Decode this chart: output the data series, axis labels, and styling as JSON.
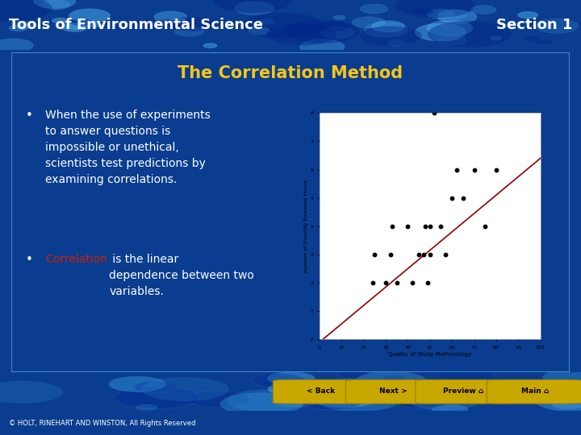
{
  "title_text": "Tools of Environmental Science",
  "section_text": "Section 1",
  "slide_title": "The Correlation Method",
  "bullet1": "When the use of experiments\nto answer questions is\nimpossible or unethical,\nscientists test predictions by\nexamining correlations.",
  "bullet2_red": "Correlation",
  "bullet2_rest": " is the linear\ndependence between two\nvariables.",
  "outer_bg": "#0a3d8f",
  "bubble_bg_top": "#1a7fd4",
  "bubble_bg_bottom": "#0055b3",
  "slide_bg": "#2a6abf",
  "slide_border": "#4488cc",
  "title_color": "#f5c518",
  "header_text_color": "#ffffff",
  "body_text_color": "#ffffff",
  "red_text_color": "#cc2200",
  "footer_text": "© HOLT, RINEHART AND WINSTON, All Rights Reserved",
  "footer_bg": "#000000",
  "btn_color": "#c8a800",
  "btn_text_color": "#000000",
  "scatter_x": [
    24,
    25,
    30,
    32,
    33,
    35,
    40,
    42,
    45,
    47,
    48,
    49,
    50,
    50,
    52,
    55,
    57,
    60,
    62,
    65,
    70,
    75,
    80
  ],
  "scatter_y": [
    2,
    3,
    2,
    3,
    4,
    2,
    4,
    2,
    3,
    3,
    4,
    2,
    3,
    4,
    8,
    4,
    3,
    5,
    6,
    5,
    6,
    4,
    6
  ],
  "scatter_xlabel": "Quality of Study Methocology",
  "scatter_ylabel": "Number of Usability Problems Found",
  "scatter_xlim": [
    0,
    100
  ],
  "scatter_ylim": [
    0,
    8
  ],
  "trendline_slope": 0.065,
  "trendline_intercept": -0.1,
  "fig_width": 7.2,
  "fig_height": 5.4,
  "dpi": 100
}
